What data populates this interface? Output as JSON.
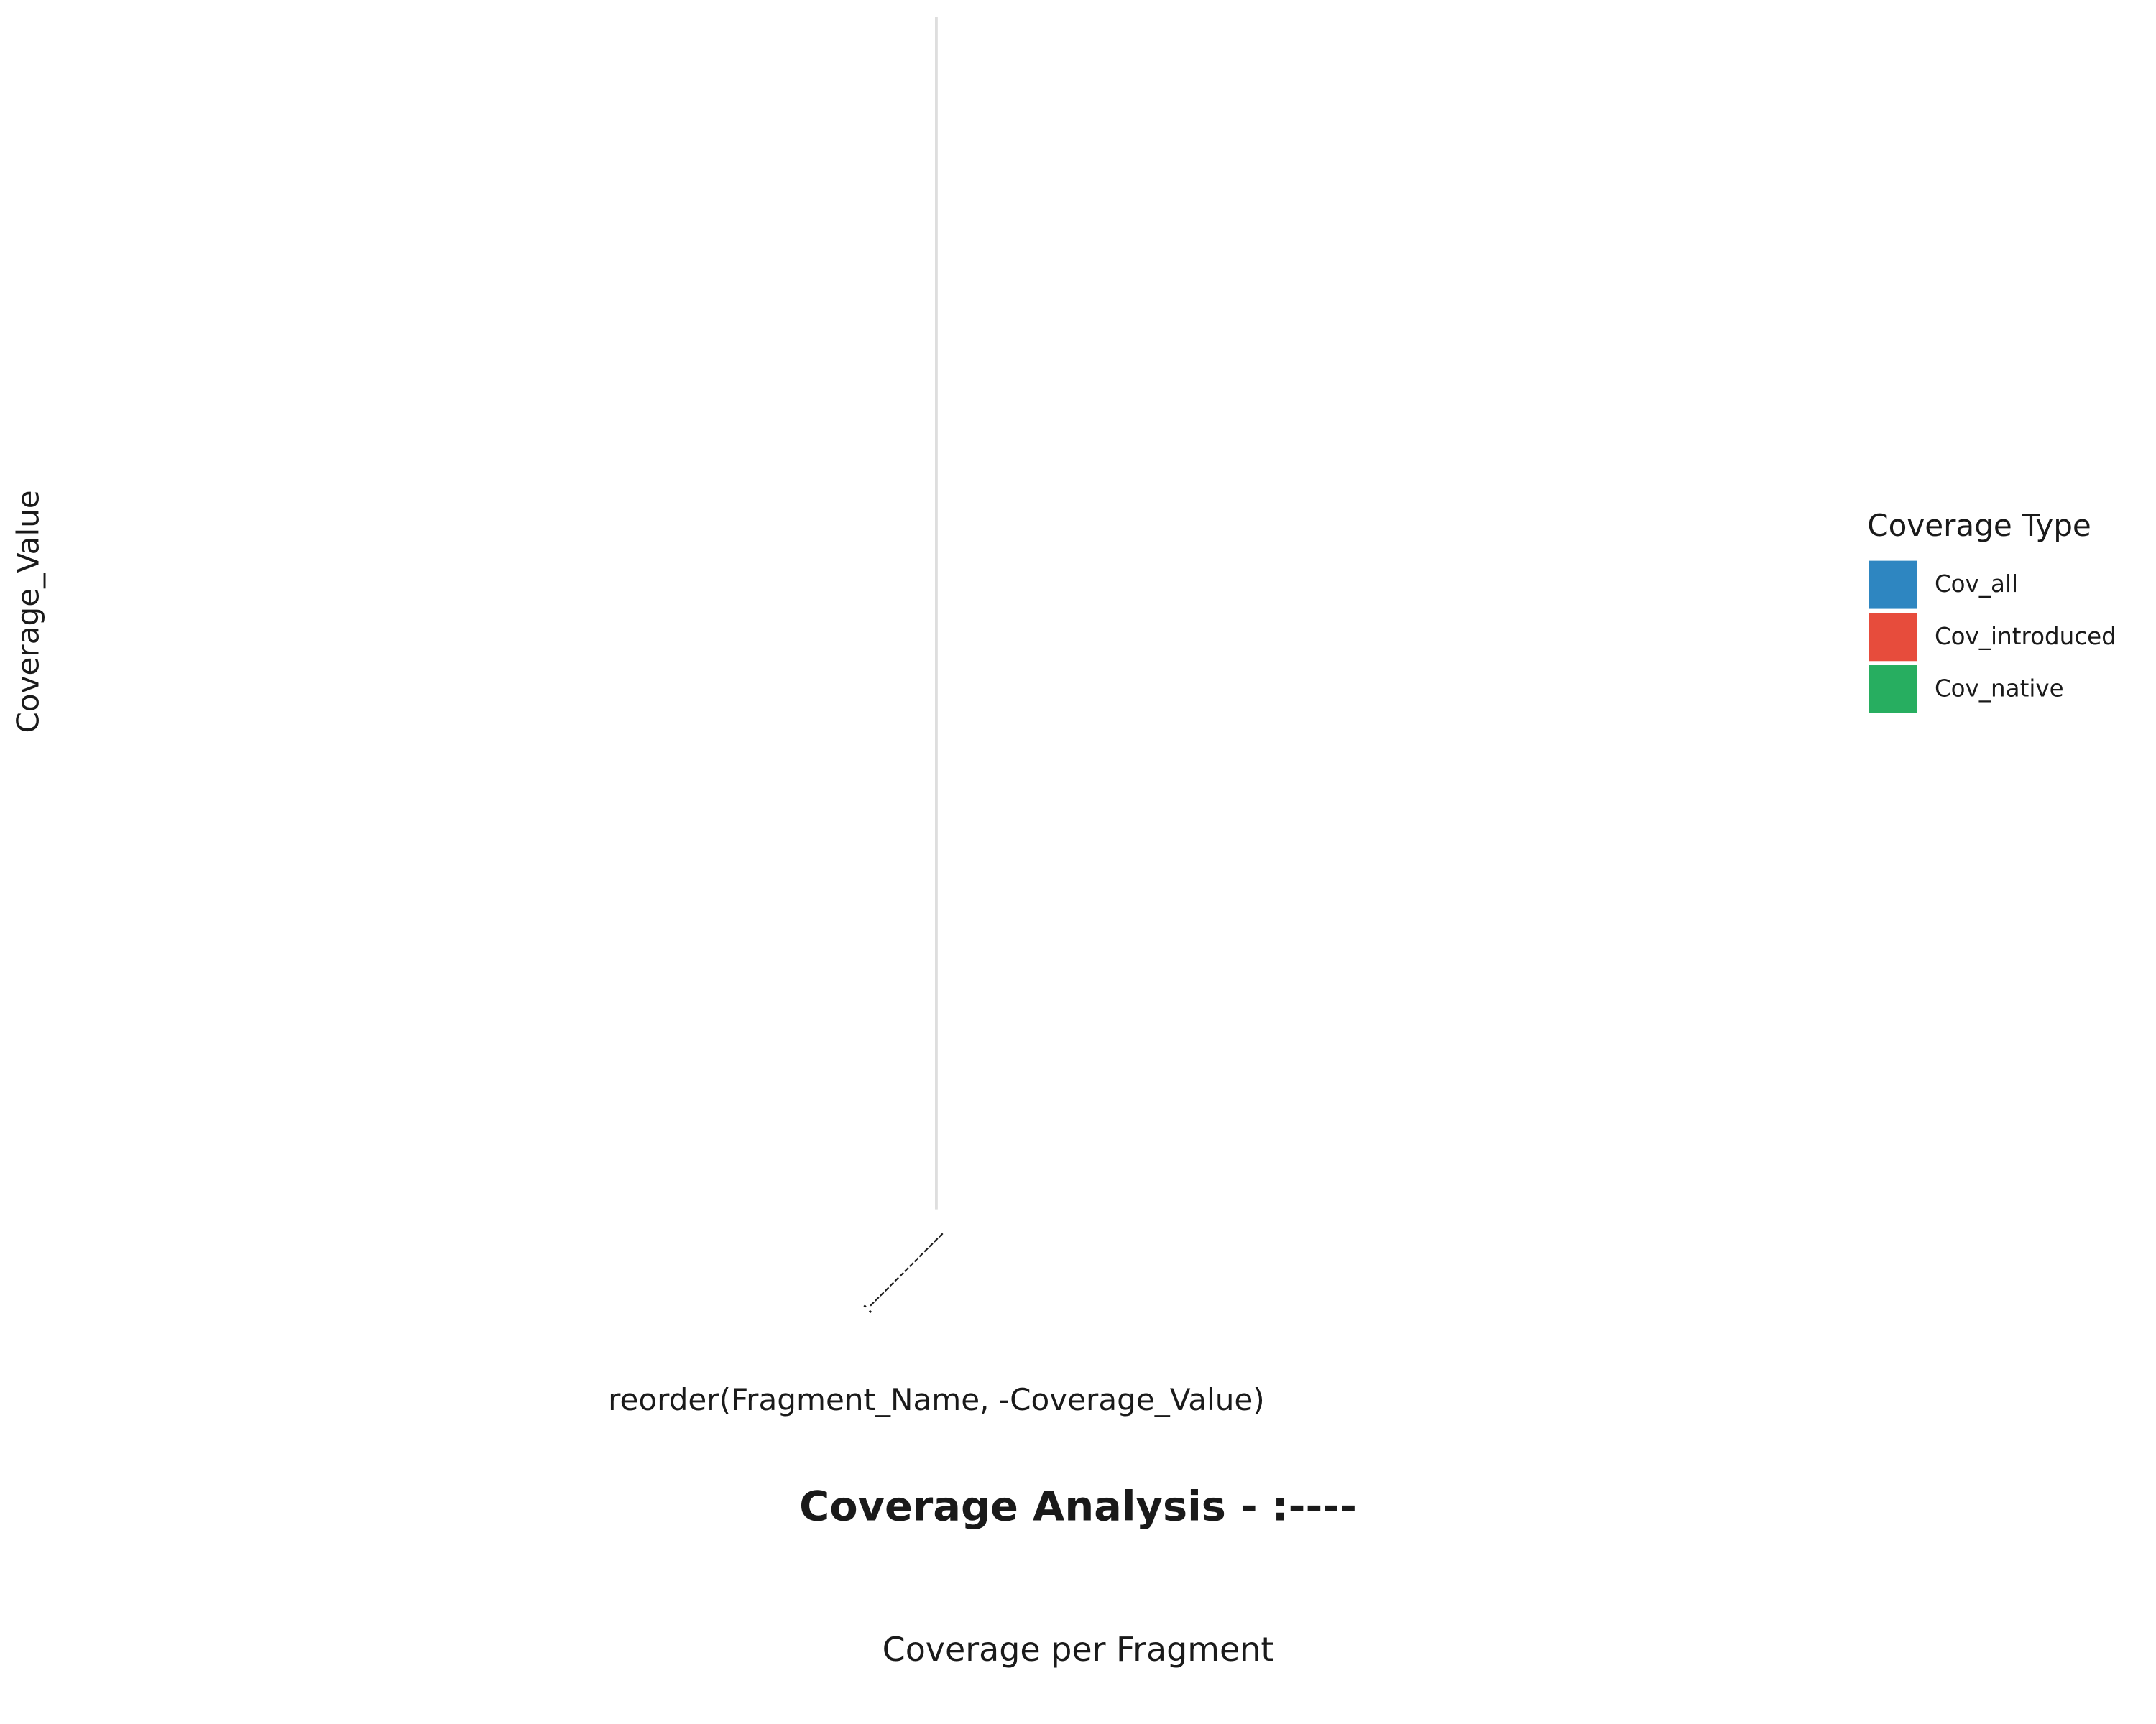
{
  "chart_data": {
    "type": "bar",
    "title": "Coverage Analysis - :----",
    "subtitle": "Coverage per Fragment",
    "x_label": "reorder(Fragment_Name, -Coverage_Value)",
    "y_label": "Coverage_Value",
    "legend_title": "Coverage Type",
    "legend_position": "right",
    "grid": true,
    "categories": [
      ":---------------"
    ],
    "series": [
      {
        "name": "Cov_all",
        "color": "#2e86c1",
        "values": [
          null
        ]
      },
      {
        "name": "Cov_introduced",
        "color": "#e74c3c",
        "values": [
          null
        ]
      },
      {
        "name": "Cov_native",
        "color": "#27ae60",
        "values": [
          null
        ]
      }
    ]
  }
}
